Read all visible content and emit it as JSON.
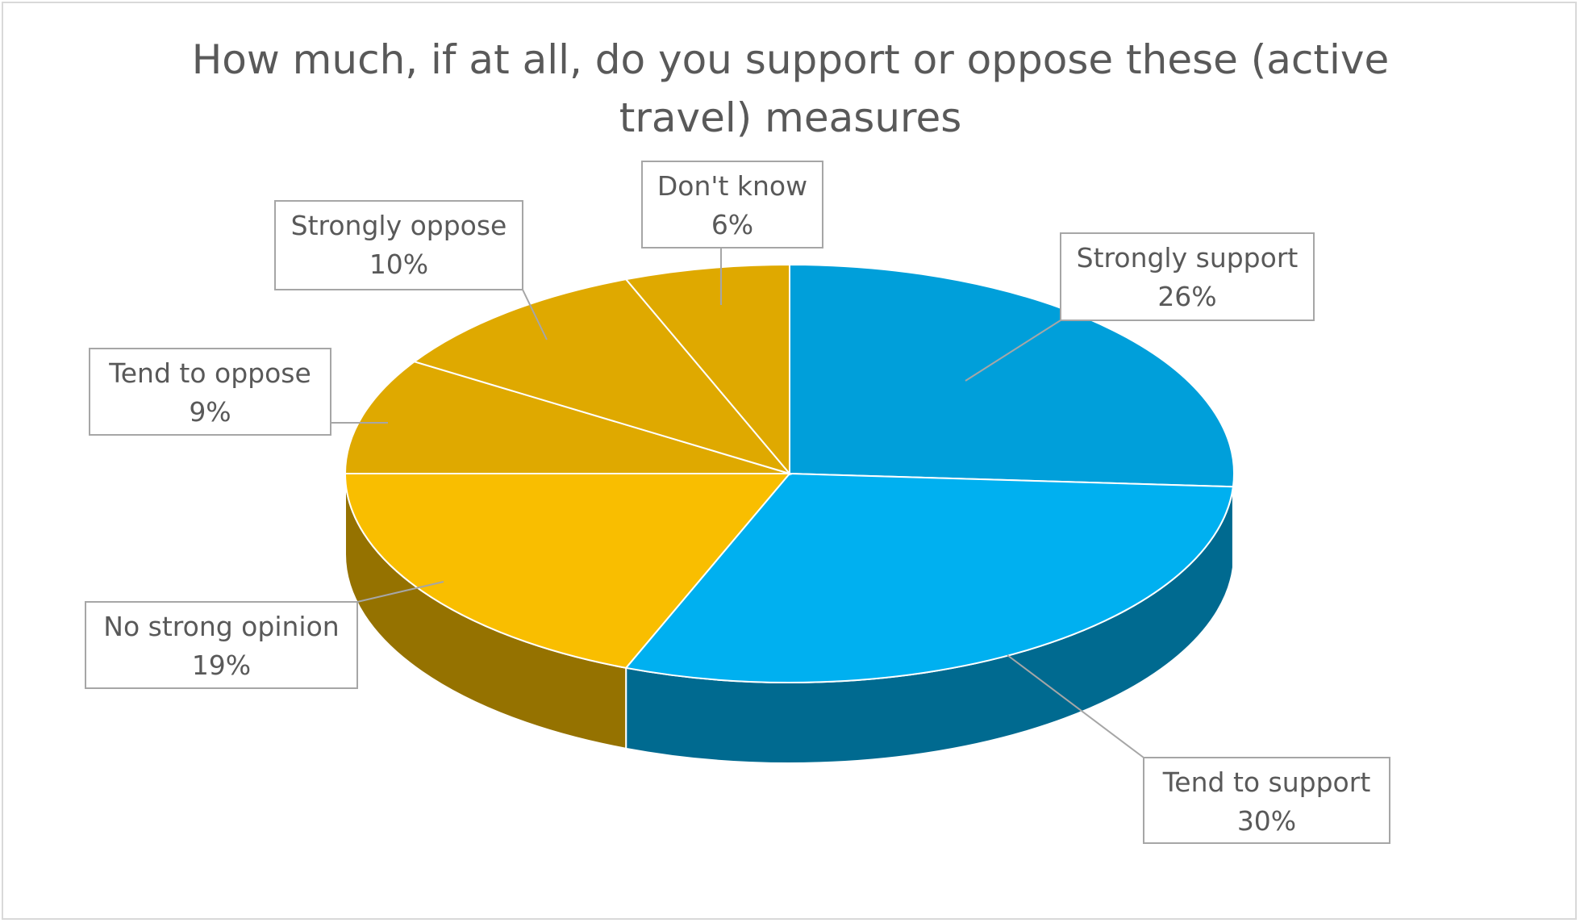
{
  "chart_data": {
    "type": "pie3d",
    "title": "How much, if at all, do you support or oppose these (active travel) measures",
    "categories": [
      "Strongly support",
      "Tend to support",
      "No strong opinion",
      "Tend to oppose",
      "Strongly oppose",
      "Don't know"
    ],
    "values": [
      26,
      30,
      19,
      9,
      10,
      6
    ],
    "value_labels": [
      "26%",
      "30%",
      "19%",
      "9%",
      "10%",
      "6%"
    ],
    "colors": [
      "#009fda",
      "#00b0f0",
      "#f9be00",
      "#dfa900",
      "#dfa900",
      "#dfa900"
    ]
  }
}
